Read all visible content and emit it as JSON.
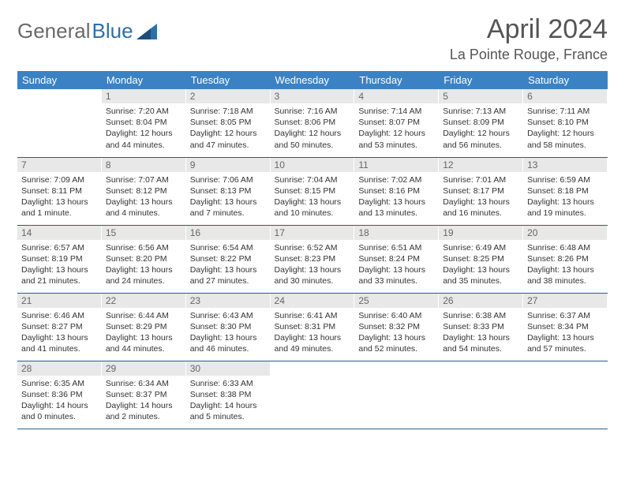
{
  "logo": {
    "text1": "General",
    "text2": "Blue"
  },
  "title": "April 2024",
  "location": "La Pointe Rouge, France",
  "colors": {
    "header_bg": "#3b82c4",
    "header_text": "#ffffff",
    "daynum_bg": "#e8e8e8",
    "row_border": "#2b5a8a",
    "logo_gray": "#6a6a6a",
    "logo_blue": "#2f6fa8"
  },
  "weekdays": [
    "Sunday",
    "Monday",
    "Tuesday",
    "Wednesday",
    "Thursday",
    "Friday",
    "Saturday"
  ],
  "weeks": [
    [
      {
        "empty": true
      },
      {
        "n": "1",
        "sr": "7:20 AM",
        "ss": "8:04 PM",
        "dl": "12 hours and 44 minutes."
      },
      {
        "n": "2",
        "sr": "7:18 AM",
        "ss": "8:05 PM",
        "dl": "12 hours and 47 minutes."
      },
      {
        "n": "3",
        "sr": "7:16 AM",
        "ss": "8:06 PM",
        "dl": "12 hours and 50 minutes."
      },
      {
        "n": "4",
        "sr": "7:14 AM",
        "ss": "8:07 PM",
        "dl": "12 hours and 53 minutes."
      },
      {
        "n": "5",
        "sr": "7:13 AM",
        "ss": "8:09 PM",
        "dl": "12 hours and 56 minutes."
      },
      {
        "n": "6",
        "sr": "7:11 AM",
        "ss": "8:10 PM",
        "dl": "12 hours and 58 minutes."
      }
    ],
    [
      {
        "n": "7",
        "sr": "7:09 AM",
        "ss": "8:11 PM",
        "dl": "13 hours and 1 minute."
      },
      {
        "n": "8",
        "sr": "7:07 AM",
        "ss": "8:12 PM",
        "dl": "13 hours and 4 minutes."
      },
      {
        "n": "9",
        "sr": "7:06 AM",
        "ss": "8:13 PM",
        "dl": "13 hours and 7 minutes."
      },
      {
        "n": "10",
        "sr": "7:04 AM",
        "ss": "8:15 PM",
        "dl": "13 hours and 10 minutes."
      },
      {
        "n": "11",
        "sr": "7:02 AM",
        "ss": "8:16 PM",
        "dl": "13 hours and 13 minutes."
      },
      {
        "n": "12",
        "sr": "7:01 AM",
        "ss": "8:17 PM",
        "dl": "13 hours and 16 minutes."
      },
      {
        "n": "13",
        "sr": "6:59 AM",
        "ss": "8:18 PM",
        "dl": "13 hours and 19 minutes."
      }
    ],
    [
      {
        "n": "14",
        "sr": "6:57 AM",
        "ss": "8:19 PM",
        "dl": "13 hours and 21 minutes."
      },
      {
        "n": "15",
        "sr": "6:56 AM",
        "ss": "8:20 PM",
        "dl": "13 hours and 24 minutes."
      },
      {
        "n": "16",
        "sr": "6:54 AM",
        "ss": "8:22 PM",
        "dl": "13 hours and 27 minutes."
      },
      {
        "n": "17",
        "sr": "6:52 AM",
        "ss": "8:23 PM",
        "dl": "13 hours and 30 minutes."
      },
      {
        "n": "18",
        "sr": "6:51 AM",
        "ss": "8:24 PM",
        "dl": "13 hours and 33 minutes."
      },
      {
        "n": "19",
        "sr": "6:49 AM",
        "ss": "8:25 PM",
        "dl": "13 hours and 35 minutes."
      },
      {
        "n": "20",
        "sr": "6:48 AM",
        "ss": "8:26 PM",
        "dl": "13 hours and 38 minutes."
      }
    ],
    [
      {
        "n": "21",
        "sr": "6:46 AM",
        "ss": "8:27 PM",
        "dl": "13 hours and 41 minutes."
      },
      {
        "n": "22",
        "sr": "6:44 AM",
        "ss": "8:29 PM",
        "dl": "13 hours and 44 minutes."
      },
      {
        "n": "23",
        "sr": "6:43 AM",
        "ss": "8:30 PM",
        "dl": "13 hours and 46 minutes."
      },
      {
        "n": "24",
        "sr": "6:41 AM",
        "ss": "8:31 PM",
        "dl": "13 hours and 49 minutes."
      },
      {
        "n": "25",
        "sr": "6:40 AM",
        "ss": "8:32 PM",
        "dl": "13 hours and 52 minutes."
      },
      {
        "n": "26",
        "sr": "6:38 AM",
        "ss": "8:33 PM",
        "dl": "13 hours and 54 minutes."
      },
      {
        "n": "27",
        "sr": "6:37 AM",
        "ss": "8:34 PM",
        "dl": "13 hours and 57 minutes."
      }
    ],
    [
      {
        "n": "28",
        "sr": "6:35 AM",
        "ss": "8:36 PM",
        "dl": "14 hours and 0 minutes."
      },
      {
        "n": "29",
        "sr": "6:34 AM",
        "ss": "8:37 PM",
        "dl": "14 hours and 2 minutes."
      },
      {
        "n": "30",
        "sr": "6:33 AM",
        "ss": "8:38 PM",
        "dl": "14 hours and 5 minutes."
      },
      {
        "empty": true
      },
      {
        "empty": true
      },
      {
        "empty": true
      },
      {
        "empty": true
      }
    ]
  ],
  "labels": {
    "sunrise": "Sunrise:",
    "sunset": "Sunset:",
    "daylight": "Daylight:"
  }
}
